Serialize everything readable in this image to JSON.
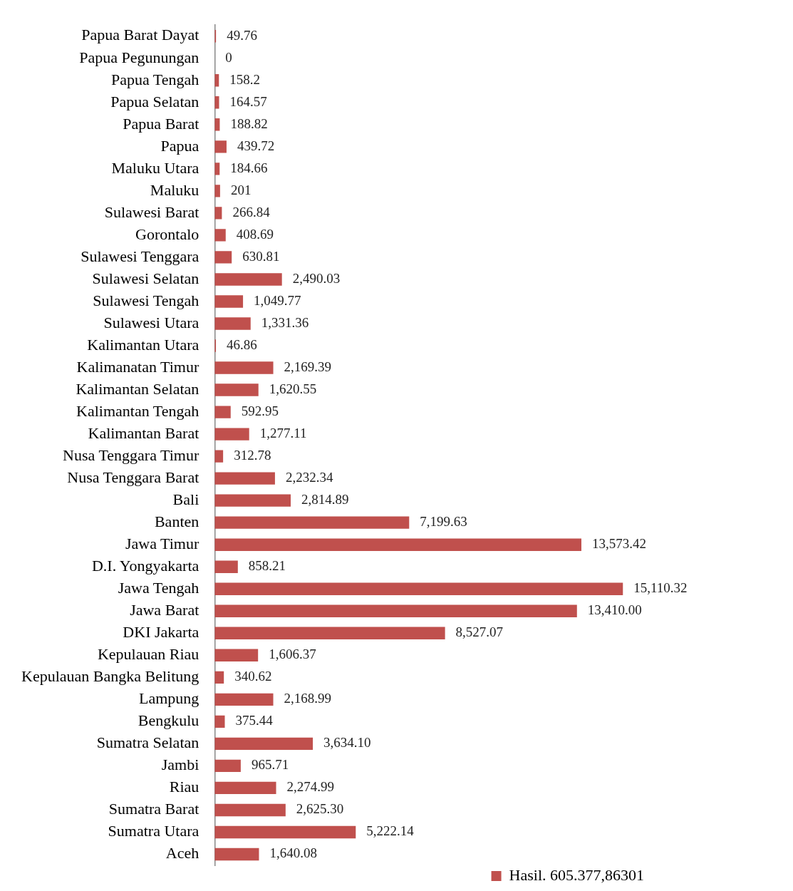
{
  "chart_data": {
    "type": "bar",
    "orientation": "horizontal",
    "legend": "bottom right",
    "grid": false,
    "tick_labels": "y",
    "categories": [
      "Papua Barat Dayat",
      "Papua Pegunungan",
      "Papua Tengah",
      "Papua Selatan",
      "Papua Barat",
      "Papua",
      "Maluku Utara",
      "Maluku",
      "Sulawesi Barat",
      "Gorontalo",
      "Sulawesi Tenggara",
      "Sulawesi Selatan",
      "Sulawesi Tengah",
      "Sulawesi Utara",
      "Kalimantan Utara",
      "Kalimanatan Timur",
      "Kalimantan Selatan",
      "Kalimantan Tengah",
      "Kalimantan Barat",
      "Nusa Tenggara Timur",
      "Nusa Tenggara Barat",
      "Bali",
      "Banten",
      "Jawa Timur",
      "D.I. Yongyakarta",
      "Jawa Tengah",
      "Jawa Barat",
      "DKI Jakarta",
      "Kepulauan Riau",
      "Kepulauan Bangka Belitung",
      "Lampung",
      "Bengkulu",
      "Sumatra Selatan",
      "Jambi",
      "Riau",
      "Sumatra Barat",
      "Sumatra Utara",
      "Aceh"
    ],
    "series": [
      {
        "name": "Hasil. 605.377,86301",
        "color": "#c0504d",
        "values": [
          49.76,
          0,
          158.2,
          164.57,
          188.82,
          439.72,
          184.66,
          201,
          266.84,
          408.69,
          630.81,
          2490.03,
          1049.77,
          1331.36,
          46.86,
          2169.39,
          1620.55,
          592.95,
          1277.11,
          312.78,
          2232.34,
          2814.89,
          7199.63,
          13573.42,
          858.21,
          15110.32,
          13410.0,
          8527.07,
          1606.37,
          340.62,
          2168.99,
          375.44,
          3634.1,
          965.71,
          2274.99,
          2625.3,
          5222.14,
          1640.08
        ],
        "value_labels": [
          "49.76",
          "0",
          "158.2",
          "164.57",
          "188.82",
          "439.72",
          "184.66",
          "201",
          "266.84",
          "408.69",
          "630.81",
          "2,490.03",
          "1,049.77",
          "1,331.36",
          "46.86",
          "2,169.39",
          "1,620.55",
          "592.95",
          "1,277.11",
          "312.78",
          "2,232.34",
          "2,814.89",
          "7,199.63",
          "13,573.42",
          "858.21",
          "15,110.32",
          "13,410.00",
          "8,527.07",
          "1,606.37",
          "340.62",
          "2,168.99",
          "375.44",
          "3,634.10",
          "965.71",
          "2,274.99",
          "2,625.30",
          "5,222.14",
          "1,640.08"
        ]
      }
    ]
  }
}
